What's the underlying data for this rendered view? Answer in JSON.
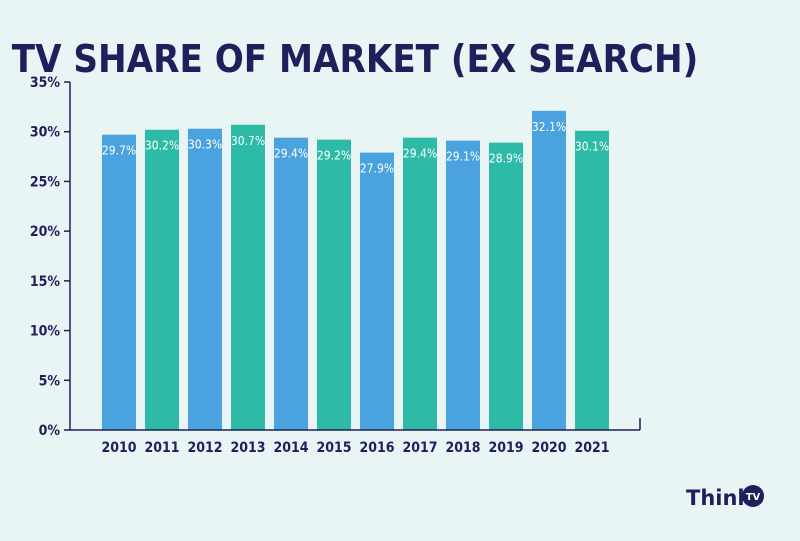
{
  "chart_data": {
    "type": "bar",
    "title": "TV SHARE OF MARKET (EX SEARCH)",
    "xlabel": "",
    "ylabel": "",
    "categories": [
      "2010",
      "2011",
      "2012",
      "2013",
      "2014",
      "2015",
      "2016",
      "2017",
      "2018",
      "2019",
      "2020",
      "2021"
    ],
    "values": [
      29.7,
      30.2,
      30.3,
      30.7,
      29.4,
      29.2,
      27.9,
      29.4,
      29.1,
      28.9,
      32.1,
      30.1
    ],
    "value_labels": [
      "29.7%",
      "30.2%",
      "30.3%",
      "30.7%",
      "29.4%",
      "29.2%",
      "27.9%",
      "29.4%",
      "29.1%",
      "28.9%",
      "32.1%",
      "30.1%"
    ],
    "ylim": [
      0,
      35
    ],
    "yticks": [
      0,
      5,
      10,
      15,
      20,
      25,
      30,
      35
    ],
    "ytick_labels": [
      "0%",
      "5%",
      "10%",
      "15%",
      "20%",
      "25%",
      "30%",
      "35%"
    ],
    "bar_colors": [
      "#4aa3df",
      "#2dbaa6"
    ],
    "grid": false,
    "legend": "none"
  },
  "logo": {
    "text": "Think",
    "badge": "TV",
    "color": "#1f1f5c"
  }
}
